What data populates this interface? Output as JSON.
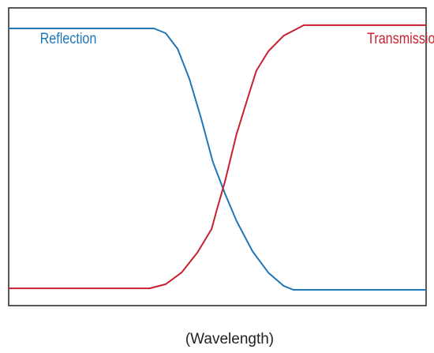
{
  "chart_data": {
    "type": "line",
    "x_label": "(Wavelength)",
    "xlim": [
      0,
      100
    ],
    "ylim": [
      0,
      100
    ],
    "series": [
      {
        "name": "Reflection",
        "color": "#1f77b8",
        "x": [
          0,
          34.8,
          37.6,
          40.5,
          43.3,
          46.1,
          48.9,
          51.8,
          54.6,
          58.4,
          62.2,
          65.9,
          68.2,
          100
        ],
        "values": [
          93.1,
          93.1,
          91.5,
          86.2,
          76.1,
          62.9,
          48.3,
          37.7,
          28.4,
          18.3,
          11.1,
          6.6,
          5.3,
          5.3
        ]
      },
      {
        "name": "Transmission",
        "color": "#c8202f",
        "x": [
          0,
          33.8,
          37.6,
          41.4,
          45.2,
          48.6,
          49.9,
          51.8,
          54.6,
          57.5,
          59.3,
          62.2,
          65.9,
          70.7,
          100
        ],
        "values": [
          5.8,
          5.8,
          7.2,
          11.1,
          17.8,
          25.7,
          32.4,
          41.6,
          57.6,
          70.8,
          78.8,
          85.4,
          90.7,
          94.2,
          94.2
        ]
      }
    ],
    "legend": "inside-top"
  }
}
